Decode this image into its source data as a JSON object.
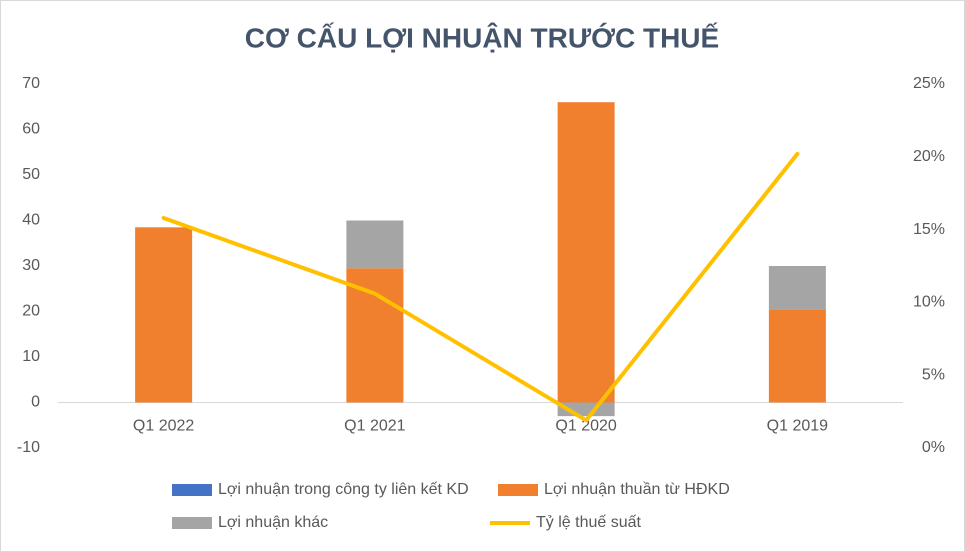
{
  "chart_data": {
    "type": "bar-line",
    "title": "CƠ CẤU LỢI NHUẬN TRƯỚC THUẾ",
    "categories": [
      "Q1 2022",
      "Q1 2021",
      "Q1 2020",
      "Q1 2019"
    ],
    "series": [
      {
        "name": "Lợi nhuận trong công ty liên kết KD",
        "color": "#4472c4",
        "type": "bar",
        "values": [
          0,
          0,
          0,
          0
        ]
      },
      {
        "name": "Lợi nhuận thuần từ HĐKD",
        "color": "#f07f2e",
        "type": "bar",
        "values": [
          38.5,
          29.5,
          66,
          20.5
        ]
      },
      {
        "name": "Lợi nhuận khác",
        "color": "#a5a5a5",
        "type": "bar",
        "values": [
          0,
          10.5,
          -3,
          9.5
        ]
      },
      {
        "name": "Tỷ lệ thuế suất",
        "color": "#ffc000",
        "type": "line",
        "axis": "y2",
        "values": [
          15.8,
          10.6,
          1.9,
          20.2
        ]
      }
    ],
    "ylim": [
      -10,
      70
    ],
    "yticks": [
      -10,
      0,
      10,
      20,
      30,
      40,
      50,
      60,
      70
    ],
    "y2lim": [
      0,
      25
    ],
    "y2ticks": [
      {
        "value": 0,
        "label": "0%"
      },
      {
        "value": 5,
        "label": "5%"
      },
      {
        "value": 10,
        "label": "10%"
      },
      {
        "value": 15,
        "label": "15%"
      },
      {
        "value": 20,
        "label": "20%"
      },
      {
        "value": 25,
        "label": "25%"
      }
    ],
    "grid": false,
    "legend": "bottom"
  }
}
